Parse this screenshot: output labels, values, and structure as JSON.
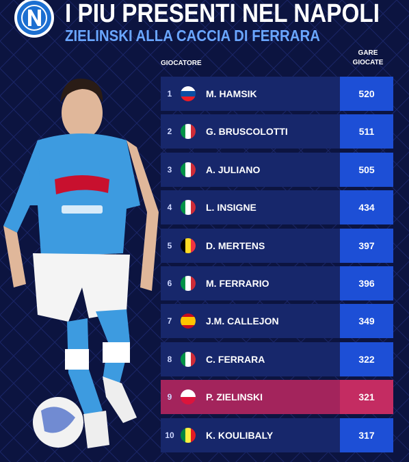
{
  "header": {
    "title": "I PIU PRESENTI NEL NAPOLI",
    "subtitle": "ZIELINSKI ALLA CACCIA DI FERRARA"
  },
  "table": {
    "columns": [
      "GIOCATORE",
      "GARE GIOCATE"
    ],
    "rows": [
      [
        "1",
        "M. HAMSIK",
        "520"
      ],
      [
        "2",
        "G. BRUSCOLOTTI",
        "511"
      ],
      [
        "3",
        "A. JULIANO",
        "505"
      ],
      [
        "4",
        "L. INSIGNE",
        "434"
      ],
      [
        "5",
        "D. MERTENS",
        "397"
      ],
      [
        "6",
        "M. FERRARIO",
        "396"
      ],
      [
        "7",
        "J.M. CALLEJON",
        "349"
      ],
      [
        "8",
        "C. FERRARA",
        "322"
      ],
      [
        "9",
        "P. ZIELINSKI",
        "321"
      ],
      [
        "10",
        "K. KOULIBALY",
        "317"
      ]
    ]
  }
}
